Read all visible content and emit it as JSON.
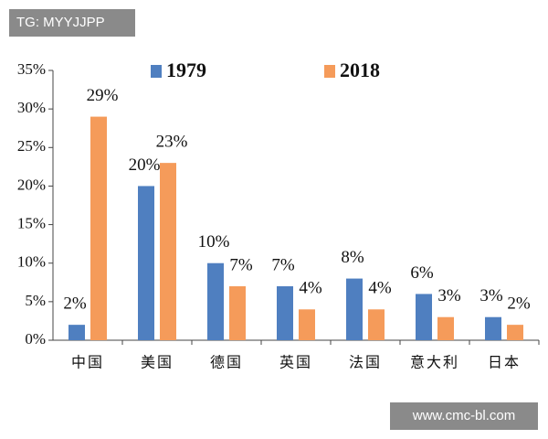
{
  "chart_data": {
    "type": "bar",
    "categories": [
      "中国",
      "美国",
      "德国",
      "英国",
      "法国",
      "意大利",
      "日本"
    ],
    "series": [
      {
        "name": "1979",
        "color": "#4f7fc0",
        "values": [
          2,
          20,
          10,
          7,
          8,
          6,
          3
        ],
        "value_labels": [
          "2%",
          "20%",
          "10%",
          "7%",
          "8%",
          "6%",
          "3%"
        ]
      },
      {
        "name": "2018",
        "color": "#f59b5a",
        "values": [
          29,
          23,
          7,
          4,
          4,
          3,
          2
        ],
        "value_labels": [
          "29%",
          "23%",
          "7%",
          "4%",
          "4%",
          "3%",
          "2%"
        ]
      }
    ],
    "ylim": [
      0,
      35
    ],
    "yticks": [
      {
        "value": 0,
        "label": "0%"
      },
      {
        "value": 5,
        "label": "5%"
      },
      {
        "value": 10,
        "label": "10%"
      },
      {
        "value": 15,
        "label": "15%"
      },
      {
        "value": 20,
        "label": "20%"
      },
      {
        "value": 25,
        "label": "25%"
      },
      {
        "value": 30,
        "label": "30%"
      },
      {
        "value": 35,
        "label": "35%"
      }
    ],
    "grid": false,
    "legend": "top",
    "annotations": [
      "TG: MYYJJPP",
      "www.cmc-bl.com"
    ]
  }
}
